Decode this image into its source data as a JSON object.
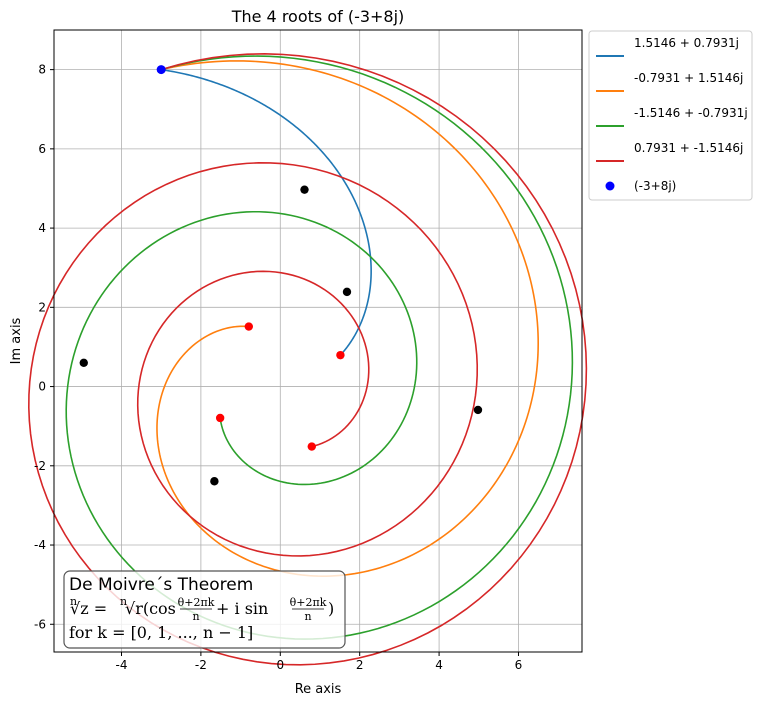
{
  "chart_data": {
    "type": "line",
    "title": "The 4 roots of (-3+8j)",
    "xlabel": "Re axis",
    "ylabel": "Im axis",
    "xlim": [
      -5.7,
      7.6
    ],
    "ylim": [
      -6.7,
      9.0
    ],
    "xticks": [
      -4,
      -2,
      0,
      2,
      4,
      6
    ],
    "yticks": [
      -6,
      -4,
      -2,
      0,
      2,
      4,
      6,
      8
    ],
    "xtick_labels": [
      "-4",
      "-2",
      "0",
      "2",
      "4",
      "6"
    ],
    "ytick_labels": [
      "-6",
      "-4",
      "-2",
      "0",
      "2",
      "4",
      "6",
      "8"
    ],
    "grid": true,
    "legend_position": "outside-upper-right",
    "z": {
      "re": -3,
      "im": 8,
      "label": "(-3+8j)",
      "color": "#0000ff"
    },
    "endpoint_color": "#ff0000",
    "intermediate_color": "#000000",
    "series": [
      {
        "name": "1.5146 + 0.7931j",
        "color": "#1f77b4",
        "root": {
          "re": 1.5146,
          "im": 0.7931
        },
        "k": 0
      },
      {
        "name": "-0.7931 + 1.5146j",
        "color": "#ff7f0e",
        "root": {
          "re": -0.7931,
          "im": 1.5146
        },
        "k": 1
      },
      {
        "name": "-1.5146 + -0.7931j",
        "color": "#2ca02c",
        "root": {
          "re": -1.5146,
          "im": -0.7931
        },
        "k": 2
      },
      {
        "name": "0.7931 + -1.5146j",
        "color": "#d62728",
        "root": {
          "re": 0.7931,
          "im": -1.5146
        },
        "k": 3
      }
    ],
    "intermediate_points": [
      {
        "re": 0.61,
        "im": 4.97
      },
      {
        "re": 1.68,
        "im": 2.39
      },
      {
        "re": -4.95,
        "im": 0.6
      },
      {
        "re": 4.98,
        "im": -0.59
      },
      {
        "re": -1.66,
        "im": -2.39
      }
    ]
  },
  "annotation": {
    "heading": "De Moivre´s Theorem",
    "formula_root_index": "n",
    "formula_lhs": "√z =",
    "formula_rhs_prefix": "√r(cos",
    "frac_num": "θ+2πk",
    "frac_den": "n",
    "formula_mid": "+ i sin",
    "formula_end": ")",
    "k_line": "for k = [0, 1, ..., n − 1]"
  }
}
